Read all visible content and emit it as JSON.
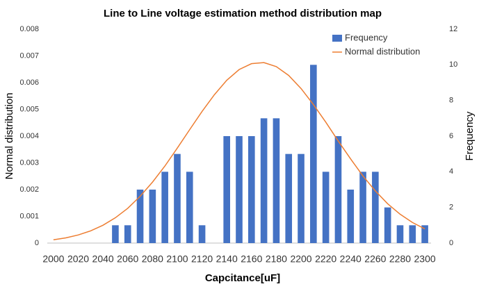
{
  "chart_data": {
    "type": "combo",
    "title": "Line to Line voltage estimation method distribution map",
    "x_label": "Capcitance[uF]",
    "y_label": "Normal distribution",
    "y2_label": "Frequency",
    "categories": [
      "2000",
      null,
      "2020",
      null,
      "2040",
      null,
      "2060",
      null,
      "2080",
      null,
      "2100",
      null,
      "2120",
      null,
      "2140",
      null,
      "2160",
      null,
      "2180",
      null,
      "2200",
      null,
      "2220",
      null,
      "2240",
      null,
      "2260",
      null,
      "2280",
      null,
      "2300"
    ],
    "series": [
      {
        "name": "Frequency",
        "type": "bar",
        "axis": "y2",
        "color": "#4472c4",
        "values": [
          0,
          0,
          0,
          0,
          0,
          1,
          1,
          3,
          3,
          4,
          5,
          4,
          1,
          0,
          6,
          6,
          6,
          7,
          7,
          5,
          5,
          10,
          4,
          6,
          3,
          4,
          4,
          2,
          1,
          1,
          1
        ]
      },
      {
        "name": "Normal distribution",
        "type": "line",
        "color": "#ed7d31",
        "values": [
          0.000123,
          0.000196,
          0.000303,
          0.000456,
          0.000667,
          0.000947,
          0.0013,
          0.00175,
          0.00228,
          0.00288,
          0.00355,
          0.00424,
          0.00492,
          0.00555,
          0.00609,
          0.00649,
          0.00671,
          0.00675,
          0.0066,
          0.00627,
          0.00578,
          0.00518,
          0.00452,
          0.00382,
          0.00315,
          0.00251,
          0.00195,
          0.00147,
          0.00108,
          0.00077,
          0.00053
        ]
      }
    ],
    "ylim": [
      0,
      0.008
    ],
    "yticks": [
      0,
      0.001,
      0.002,
      0.003,
      0.004,
      0.005,
      0.006,
      0.007,
      0.008
    ],
    "y2lim": [
      0,
      12
    ],
    "y2ticks": [
      0,
      2,
      4,
      6,
      8,
      10,
      12
    ],
    "legend": "top-right",
    "grid": false
  }
}
